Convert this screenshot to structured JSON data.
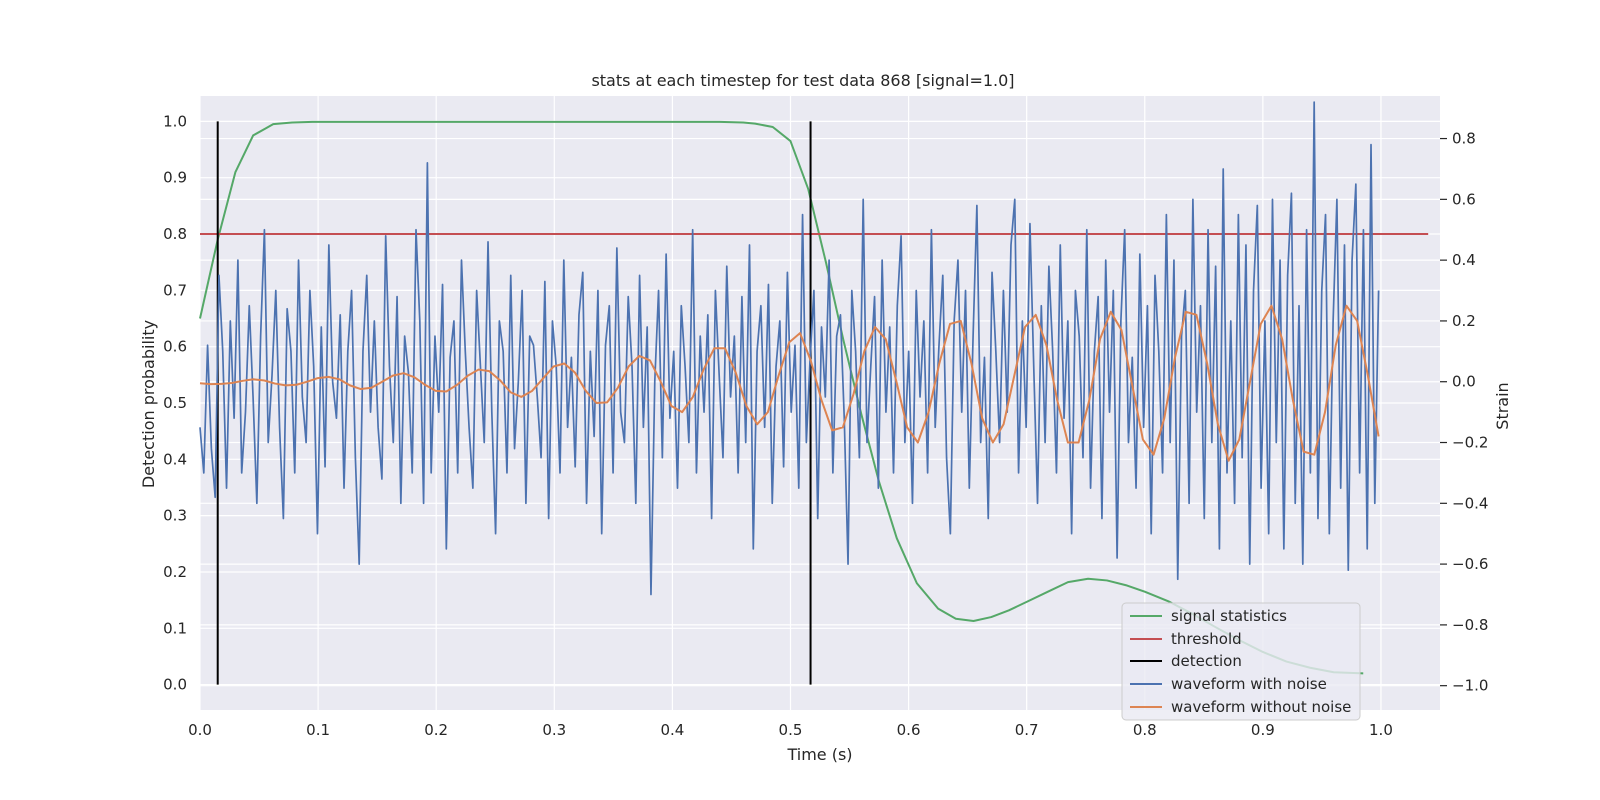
{
  "chart_data": {
    "type": "line",
    "title": "stats at each timestep for test data 868 [signal=1.0]",
    "xlabel": "Time (s)",
    "ylabel": "Detection probability",
    "y2label": "Strain",
    "xlim": [
      0.0,
      1.05
    ],
    "ylim": [
      -0.045,
      1.045
    ],
    "y2lim": [
      -1.08,
      0.94
    ],
    "xticks": [
      "0.0",
      "0.1",
      "0.2",
      "0.3",
      "0.4",
      "0.5",
      "0.6",
      "0.7",
      "0.8",
      "0.9",
      "1.0"
    ],
    "yticks": [
      "0.0",
      "0.1",
      "0.2",
      "0.3",
      "0.4",
      "0.5",
      "0.6",
      "0.7",
      "0.8",
      "0.9",
      "1.0"
    ],
    "y2ticks": [
      "−1.0",
      "−0.8",
      "−0.6",
      "−0.4",
      "−0.2",
      "0.0",
      "0.2",
      "0.4",
      "0.6",
      "0.8"
    ],
    "grid": true,
    "legend_position": "bottom-right",
    "colors": {
      "background": "#eaeaf2",
      "grid": "#ffffff",
      "signal": "#55a868",
      "threshold": "#c44e52",
      "detection": "#000000",
      "noise": "#4c72b0",
      "clean": "#dd8452"
    },
    "series": [
      {
        "name": "signal statistics",
        "axis": "left",
        "x": [
          0.0,
          0.015,
          0.03,
          0.045,
          0.062,
          0.078,
          0.095,
          0.15,
          0.3,
          0.44,
          0.46,
          0.47,
          0.485,
          0.5,
          0.515,
          0.53,
          0.545,
          0.56,
          0.575,
          0.59,
          0.607,
          0.625,
          0.64,
          0.655,
          0.67,
          0.685,
          0.7,
          0.718,
          0.735,
          0.752,
          0.768,
          0.785,
          0.8,
          0.82,
          0.84,
          0.86,
          0.88,
          0.9,
          0.92,
          0.94,
          0.96,
          0.985
        ],
        "values": [
          0.65,
          0.79,
          0.91,
          0.975,
          0.995,
          0.998,
          0.999,
          0.999,
          0.999,
          0.999,
          0.998,
          0.996,
          0.99,
          0.965,
          0.88,
          0.75,
          0.61,
          0.48,
          0.36,
          0.26,
          0.18,
          0.135,
          0.117,
          0.113,
          0.12,
          0.132,
          0.147,
          0.165,
          0.182,
          0.188,
          0.185,
          0.176,
          0.165,
          0.148,
          0.126,
          0.102,
          0.079,
          0.058,
          0.041,
          0.03,
          0.022,
          0.02
        ]
      },
      {
        "name": "threshold",
        "axis": "left",
        "x": [
          0.0,
          1.04
        ],
        "values": [
          0.8,
          0.8
        ]
      },
      {
        "name": "detection",
        "axis": "left",
        "x": [
          0.015,
          0.517
        ],
        "values": [
          1.0,
          1.0
        ]
      },
      {
        "name": "waveform with noise",
        "axis": "right",
        "x_range": [
          0.0,
          0.998
        ],
        "values": [
          -0.15,
          -0.3,
          0.12,
          -0.22,
          -0.38,
          0.35,
          0.1,
          -0.35,
          0.2,
          -0.12,
          0.4,
          -0.3,
          -0.1,
          0.25,
          -0.05,
          -0.4,
          0.15,
          0.5,
          -0.2,
          0.02,
          0.3,
          -0.15,
          -0.45,
          0.24,
          0.1,
          -0.3,
          0.4,
          -0.05,
          -0.2,
          0.3,
          0.05,
          -0.5,
          0.18,
          -0.28,
          0.45,
          0.0,
          -0.12,
          0.22,
          -0.35,
          0.1,
          0.3,
          -0.25,
          -0.6,
          0.1,
          0.35,
          -0.1,
          0.2,
          -0.15,
          -0.32,
          0.48,
          0.05,
          -0.2,
          0.28,
          -0.4,
          0.15,
          0.03,
          -0.3,
          0.5,
          0.2,
          -0.4,
          0.72,
          -0.3,
          0.15,
          -0.1,
          0.32,
          -0.55,
          0.08,
          0.2,
          -0.3,
          0.4,
          0.1,
          -0.15,
          -0.35,
          0.3,
          0.05,
          -0.2,
          0.46,
          -0.1,
          -0.5,
          0.2,
          0.1,
          -0.3,
          0.35,
          -0.22,
          0.0,
          0.3,
          -0.4,
          0.15,
          0.12,
          -0.05,
          -0.25,
          0.33,
          -0.45,
          0.2,
          0.05,
          -0.3,
          0.4,
          -0.15,
          0.08,
          -0.28,
          0.22,
          0.36,
          -0.4,
          0.1,
          -0.18,
          0.3,
          -0.5,
          0.12,
          0.25,
          -0.3,
          0.44,
          -0.1,
          -0.2,
          0.28,
          0.05,
          -0.4,
          0.35,
          -0.15,
          0.18,
          -0.7,
          0.0,
          0.3,
          -0.25,
          0.42,
          -0.12,
          0.1,
          -0.35,
          0.25,
          0.05,
          -0.2,
          0.5,
          -0.3,
          0.15,
          -0.1,
          0.22,
          -0.45,
          0.3,
          0.02,
          -0.25,
          0.38,
          -0.05,
          0.15,
          -0.3,
          0.28,
          -0.2,
          0.45,
          -0.55,
          0.1,
          0.25,
          -0.15,
          0.32,
          -0.4,
          0.05,
          0.2,
          -0.28,
          0.36,
          -0.1,
          0.12,
          -0.35,
          0.55,
          -0.2,
          0.08,
          0.3,
          -0.45,
          0.18,
          -0.05,
          0.4,
          -0.3,
          0.15,
          0.22,
          -0.12,
          -0.6,
          0.3,
          0.1,
          -0.25,
          0.6,
          -0.2,
          0.05,
          0.28,
          -0.35,
          0.4,
          -0.1,
          0.18,
          -0.3,
          0.25,
          0.48,
          -0.2,
          0.1,
          -0.4,
          0.3,
          -0.05,
          0.2,
          -0.3,
          0.5,
          -0.15,
          0.12,
          0.35,
          -0.25,
          -0.5,
          0.2,
          0.4,
          -0.1,
          0.3,
          -0.35,
          0.15,
          0.58,
          -0.2,
          0.08,
          -0.45,
          0.36,
          0.1,
          -0.2,
          0.3,
          -0.1,
          0.45,
          0.6,
          -0.3,
          0.2,
          -0.15,
          0.52,
          0.05,
          -0.4,
          0.25,
          -0.2,
          0.38,
          0.1,
          -0.3,
          0.45,
          -0.12,
          0.2,
          -0.5,
          0.3,
          0.15,
          -0.25,
          0.5,
          -0.35,
          0.1,
          0.28,
          -0.45,
          0.4,
          -0.1,
          0.3,
          -0.58,
          0.2,
          0.5,
          -0.2,
          0.08,
          -0.35,
          0.42,
          -0.15,
          0.25,
          -0.5,
          0.35,
          0.1,
          -0.3,
          0.55,
          -0.2,
          0.4,
          -0.65,
          0.15,
          0.3,
          -0.4,
          0.6,
          -0.1,
          0.25,
          -0.45,
          0.5,
          -0.2,
          0.38,
          -0.55,
          0.7,
          -0.3,
          0.2,
          -0.4,
          0.55,
          -0.25,
          0.45,
          -0.6,
          0.3,
          0.58,
          -0.35,
          0.2,
          -0.5,
          0.6,
          -0.2,
          0.4,
          -0.55,
          0.35,
          0.62,
          -0.4,
          0.25,
          -0.6,
          0.5,
          -0.3,
          0.92,
          -0.45,
          0.3,
          0.55,
          -0.5,
          0.2,
          0.6,
          -0.35,
          0.45,
          -0.62,
          0.4,
          0.65,
          -0.3,
          0.5,
          -0.55,
          0.78,
          -0.4,
          0.3
        ]
      },
      {
        "name": "waveform without noise",
        "axis": "right",
        "x_range": [
          0.0,
          0.998
        ],
        "values": [
          -0.005,
          -0.008,
          -0.007,
          -0.004,
          0.003,
          0.008,
          0.004,
          -0.006,
          -0.012,
          -0.01,
          0.0,
          0.012,
          0.016,
          0.008,
          -0.012,
          -0.024,
          -0.02,
          0.0,
          0.02,
          0.028,
          0.015,
          -0.01,
          -0.03,
          -0.032,
          -0.01,
          0.02,
          0.04,
          0.035,
          0.005,
          -0.035,
          -0.05,
          -0.03,
          0.01,
          0.05,
          0.06,
          0.03,
          -0.03,
          -0.07,
          -0.068,
          -0.02,
          0.05,
          0.085,
          0.07,
          0.0,
          -0.08,
          -0.1,
          -0.05,
          0.04,
          0.11,
          0.11,
          0.03,
          -0.08,
          -0.14,
          -0.1,
          0.02,
          0.13,
          0.16,
          0.07,
          -0.06,
          -0.16,
          -0.15,
          -0.04,
          0.1,
          0.18,
          0.14,
          0.0,
          -0.15,
          -0.2,
          -0.1,
          0.06,
          0.19,
          0.2,
          0.06,
          -0.12,
          -0.2,
          -0.14,
          0.02,
          0.18,
          0.22,
          0.12,
          -0.06,
          -0.2,
          -0.2,
          -0.06,
          0.14,
          0.23,
          0.17,
          -0.01,
          -0.19,
          -0.24,
          -0.12,
          0.08,
          0.23,
          0.22,
          0.06,
          -0.14,
          -0.26,
          -0.19,
          0.0,
          0.19,
          0.25,
          0.14,
          -0.06,
          -0.23,
          -0.24,
          -0.1,
          0.12,
          0.25,
          0.2,
          0.02,
          -0.18
        ]
      }
    ]
  },
  "legend": {
    "items": [
      {
        "label": "signal statistics",
        "color": "#55a868"
      },
      {
        "label": "threshold",
        "color": "#c44e52"
      },
      {
        "label": "detection",
        "color": "#000000"
      },
      {
        "label": "waveform with noise",
        "color": "#4c72b0"
      },
      {
        "label": "waveform without noise",
        "color": "#dd8452"
      }
    ]
  }
}
